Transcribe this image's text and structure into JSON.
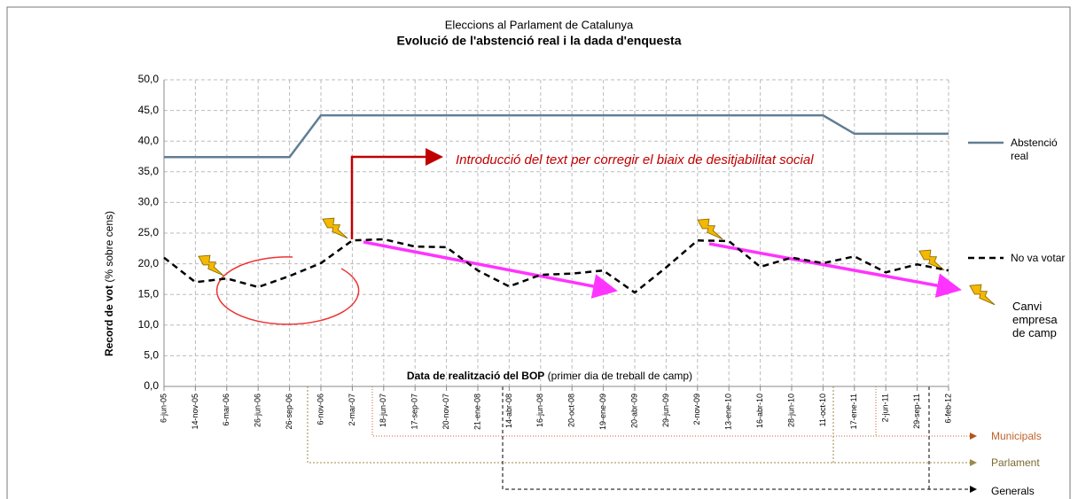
{
  "chart_data": {
    "type": "line",
    "title": "Eleccions al Parlament de Catalunya",
    "subtitle": "Evolució de l'abstenció real i la dada d'enquesta",
    "y_label": "Record de vot",
    "y_label_note": "(% sobre cens)",
    "x_label": "Data de realització del BOP",
    "x_label_note": "(primer dia de treball de camp)",
    "categories": [
      "6-jun-05",
      "14-nov-05",
      "6-mar-06",
      "26-jun-06",
      "26-sep-06",
      "6-nov-06",
      "2-mar-07",
      "18-jun-07",
      "17-sep-07",
      "20-nov-07",
      "21-ene-08",
      "14-abr-08",
      "16-jun-08",
      "20-oct-08",
      "19-ene-09",
      "20-abr-09",
      "29-jun-09",
      "2-nov-09",
      "13-ene-10",
      "16-abr-10",
      "28-jun-10",
      "11-oct-10",
      "17-ene-11",
      "2-jun-11",
      "29-sep-11",
      "6-feb-12"
    ],
    "series": [
      {
        "name": "Abstenció real",
        "color": "#617e93",
        "values": [
          37.4,
          37.4,
          37.4,
          37.4,
          37.4,
          44.2,
          44.2,
          44.2,
          44.2,
          44.2,
          44.2,
          44.2,
          44.2,
          44.2,
          44.2,
          44.2,
          44.2,
          44.2,
          44.2,
          44.2,
          44.2,
          44.2,
          41.2,
          41.2,
          41.2,
          41.2
        ]
      },
      {
        "name": "No va votar",
        "color": "#000000",
        "dashed": true,
        "values": [
          21.0,
          17.0,
          17.6,
          16.2,
          18.0,
          20.1,
          23.8,
          24.0,
          22.8,
          22.7,
          18.9,
          16.3,
          18.2,
          18.4,
          18.9,
          15.3,
          19.4,
          23.8,
          23.7,
          19.5,
          21.0,
          20.1,
          21.2,
          18.6,
          19.9,
          18.9
        ]
      }
    ],
    "ylim": [
      0,
      50
    ],
    "yticks": [
      {
        "value": 0,
        "label": "0,0"
      },
      {
        "value": 5,
        "label": "5,0"
      },
      {
        "value": 10,
        "label": "10,0"
      },
      {
        "value": 15,
        "label": "15,0"
      },
      {
        "value": 20,
        "label": "20,0"
      },
      {
        "value": 25,
        "label": "25,0"
      },
      {
        "value": 30,
        "label": "30,0"
      },
      {
        "value": 35,
        "label": "35,0"
      },
      {
        "value": 40,
        "label": "40,0"
      },
      {
        "value": 45,
        "label": "45,0"
      },
      {
        "value": 50,
        "label": "50,0"
      }
    ],
    "grid": true,
    "annotations": [
      "Introducció del text per corregir el biaix de desitjabilitat social",
      "Canvi empresa de camp"
    ],
    "elections": [
      "Municipals",
      "Parlament",
      "Generals"
    ]
  }
}
